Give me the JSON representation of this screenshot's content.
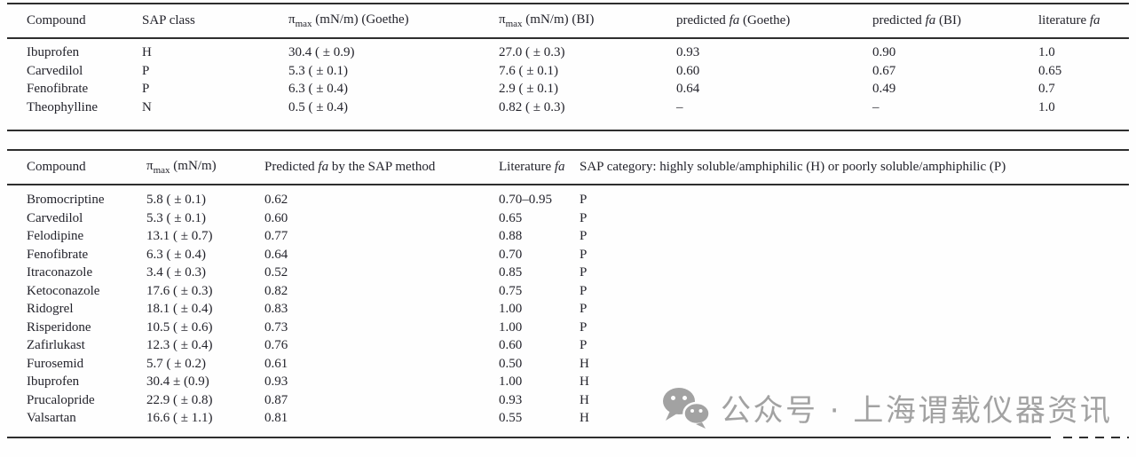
{
  "page": {
    "ink_color": "#23232b",
    "rule_color": "#2e2e2e",
    "watermark_gray": "#a2a2a2",
    "background": "#fefefe"
  },
  "table1": {
    "columns": [
      "Compound",
      "SAP class",
      "π~max~ (mN/m) (Goethe)",
      "π~max~ (mN/m) (BI)",
      "predicted *fa* (Goethe)",
      "predicted *fa* (BI)",
      "literature *fa*"
    ],
    "rows": [
      [
        "Ibuprofen",
        "H",
        "30.4 ( ± 0.9)",
        "27.0 ( ± 0.3)",
        "0.93",
        "0.90",
        "1.0"
      ],
      [
        "Carvedilol",
        "P",
        "5.3 ( ± 0.1)",
        "7.6 ( ± 0.1)",
        "0.60",
        "0.67",
        "0.65"
      ],
      [
        "Fenofibrate",
        "P",
        "6.3 ( ± 0.4)",
        "2.9 ( ± 0.1)",
        "0.64",
        "0.49",
        "0.7"
      ],
      [
        "Theophylline",
        "N",
        "0.5 ( ± 0.4)",
        "0.82 ( ± 0.3)",
        "–",
        "–",
        "1.0"
      ]
    ]
  },
  "table2": {
    "columns": [
      "Compound",
      "π~max~ (mN/m)",
      "Predicted *fa* by the SAP method",
      "Literature *fa*",
      "SAP category: highly soluble/amphiphilic (H) or poorly soluble/amphiphilic (P)"
    ],
    "rows": [
      [
        "Bromocriptine",
        "5.8 ( ± 0.1)",
        "0.62",
        "0.70–0.95",
        "P"
      ],
      [
        "Carvedilol",
        "5.3 ( ± 0.1)",
        "0.60",
        "0.65",
        "P"
      ],
      [
        "Felodipine",
        "13.1 ( ± 0.7)",
        "0.77",
        "0.88",
        "P"
      ],
      [
        "Fenofibrate",
        "6.3 ( ± 0.4)",
        "0.64",
        "0.70",
        "P"
      ],
      [
        "Itraconazole",
        "3.4 ( ± 0.3)",
        "0.52",
        "0.85",
        "P"
      ],
      [
        "Ketoconazole",
        "17.6 ( ± 0.3)",
        "0.82",
        "0.75",
        "P"
      ],
      [
        "Ridogrel",
        "18.1 ( ± 0.4)",
        "0.83",
        "1.00",
        "P"
      ],
      [
        "Risperidone",
        "10.5 ( ± 0.6)",
        "0.73",
        "1.00",
        "P"
      ],
      [
        "Zafirlukast",
        "12.3 ( ± 0.4)",
        "0.76",
        "0.60",
        "P"
      ],
      [
        "Furosemid",
        "5.7 ( ± 0.2)",
        "0.61",
        "0.50",
        "H"
      ],
      [
        "Ibuprofen",
        "30.4 ± (0.9)",
        "0.93",
        "1.00",
        "H"
      ],
      [
        "Prucalopride",
        "22.9 ( ± 0.8)",
        "0.87",
        "0.93",
        "H"
      ],
      [
        "Valsartan",
        "16.6 ( ± 1.1)",
        "0.81",
        "0.55",
        "H"
      ]
    ]
  },
  "watermark": {
    "icon": "wechat-icon",
    "text": "公众号 · 上海谓载仪器资讯"
  }
}
